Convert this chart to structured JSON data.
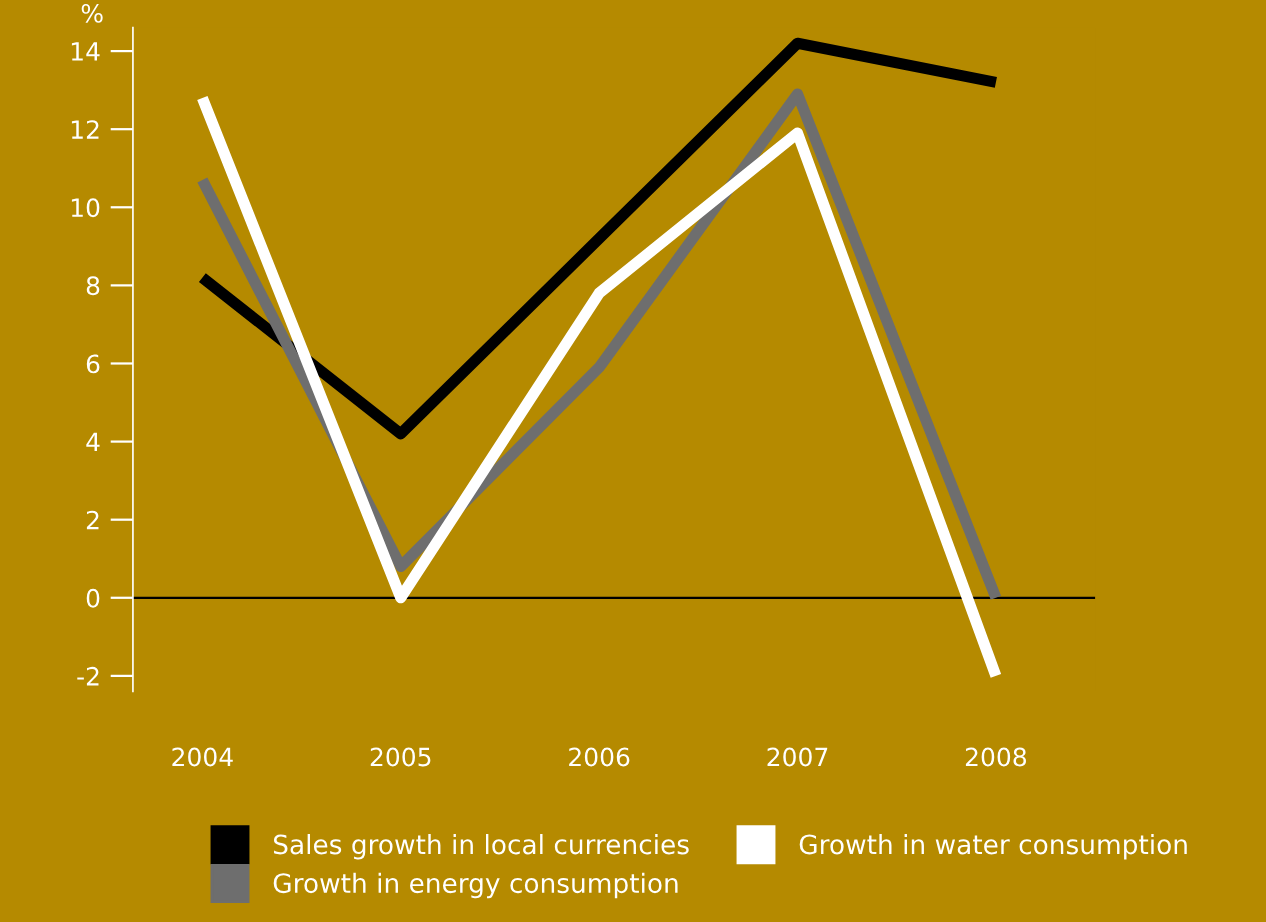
{
  "chart_data": {
    "type": "line",
    "ylabel": "%",
    "categories": [
      "2004",
      "2005",
      "2006",
      "2007",
      "2008"
    ],
    "series": [
      {
        "name": "Sales growth in local currencies",
        "color": "#000000",
        "values": [
          8.2,
          4.2,
          9.2,
          14.2,
          13.2
        ]
      },
      {
        "name": "Growth in energy consumption",
        "color": "#6e6e6e",
        "values": [
          10.7,
          0.8,
          5.9,
          12.9,
          0
        ]
      },
      {
        "name": "Growth in water consumption",
        "color": "#ffffff",
        "values": [
          12.8,
          0,
          7.8,
          11.9,
          -2
        ]
      }
    ],
    "ylim": [
      -2.4,
      14.6
    ],
    "yticks": [
      -2,
      0,
      2,
      4,
      6,
      8,
      10,
      12,
      14
    ],
    "ref_lines": [
      {
        "axis": "y",
        "value": 0,
        "color": "#000000"
      }
    ],
    "grid": false,
    "legend": "bottom",
    "marker": "none",
    "line_style": "solid"
  }
}
